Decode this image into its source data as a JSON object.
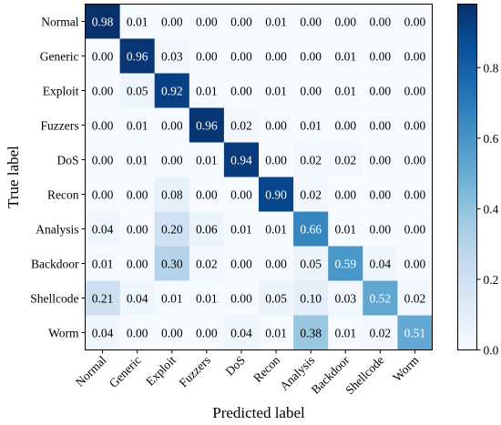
{
  "chart_data": {
    "type": "heatmap",
    "title": "",
    "xlabel": "Predicted label",
    "ylabel": "True label",
    "x_categories": [
      "Normal",
      "Generic",
      "Exploit",
      "Fuzzers",
      "DoS",
      "Recon",
      "Analysis",
      "Backdoor",
      "Shellcode",
      "Worm"
    ],
    "y_categories": [
      "Normal",
      "Generic",
      "Exploit",
      "Fuzzers",
      "DoS",
      "Recon",
      "Analysis",
      "Backdoor",
      "Shellcode",
      "Worm"
    ],
    "values": [
      [
        0.98,
        0.01,
        0.0,
        0.0,
        0.0,
        0.01,
        0.0,
        0.0,
        0.0,
        0.0
      ],
      [
        0.0,
        0.96,
        0.03,
        0.0,
        0.0,
        0.0,
        0.0,
        0.01,
        0.0,
        0.0
      ],
      [
        0.0,
        0.05,
        0.92,
        0.01,
        0.0,
        0.01,
        0.0,
        0.01,
        0.0,
        0.0
      ],
      [
        0.0,
        0.01,
        0.0,
        0.96,
        0.02,
        0.0,
        0.01,
        0.0,
        0.0,
        0.0
      ],
      [
        0.0,
        0.01,
        0.0,
        0.01,
        0.94,
        0.0,
        0.02,
        0.02,
        0.0,
        0.0
      ],
      [
        0.0,
        0.0,
        0.08,
        0.0,
        0.0,
        0.9,
        0.02,
        0.0,
        0.0,
        0.0
      ],
      [
        0.04,
        0.0,
        0.2,
        0.06,
        0.01,
        0.01,
        0.66,
        0.01,
        0.0,
        0.0
      ],
      [
        0.01,
        0.0,
        0.3,
        0.02,
        0.0,
        0.0,
        0.05,
        0.59,
        0.04,
        0.0
      ],
      [
        0.21,
        0.04,
        0.01,
        0.01,
        0.0,
        0.05,
        0.1,
        0.03,
        0.52,
        0.02
      ],
      [
        0.04,
        0.0,
        0.0,
        0.0,
        0.04,
        0.01,
        0.38,
        0.01,
        0.02,
        0.51
      ]
    ],
    "value_format": "0.00",
    "colormap": "Blues",
    "color_range": [
      0.0,
      0.98
    ],
    "colorbar_ticks": [
      "0.0",
      "0.2",
      "0.4",
      "0.6",
      "0.8"
    ],
    "colorbar_tick_values": [
      0.0,
      0.2,
      0.4,
      0.6,
      0.8
    ],
    "x_tick_rotation_deg": 45,
    "grid": false
  }
}
